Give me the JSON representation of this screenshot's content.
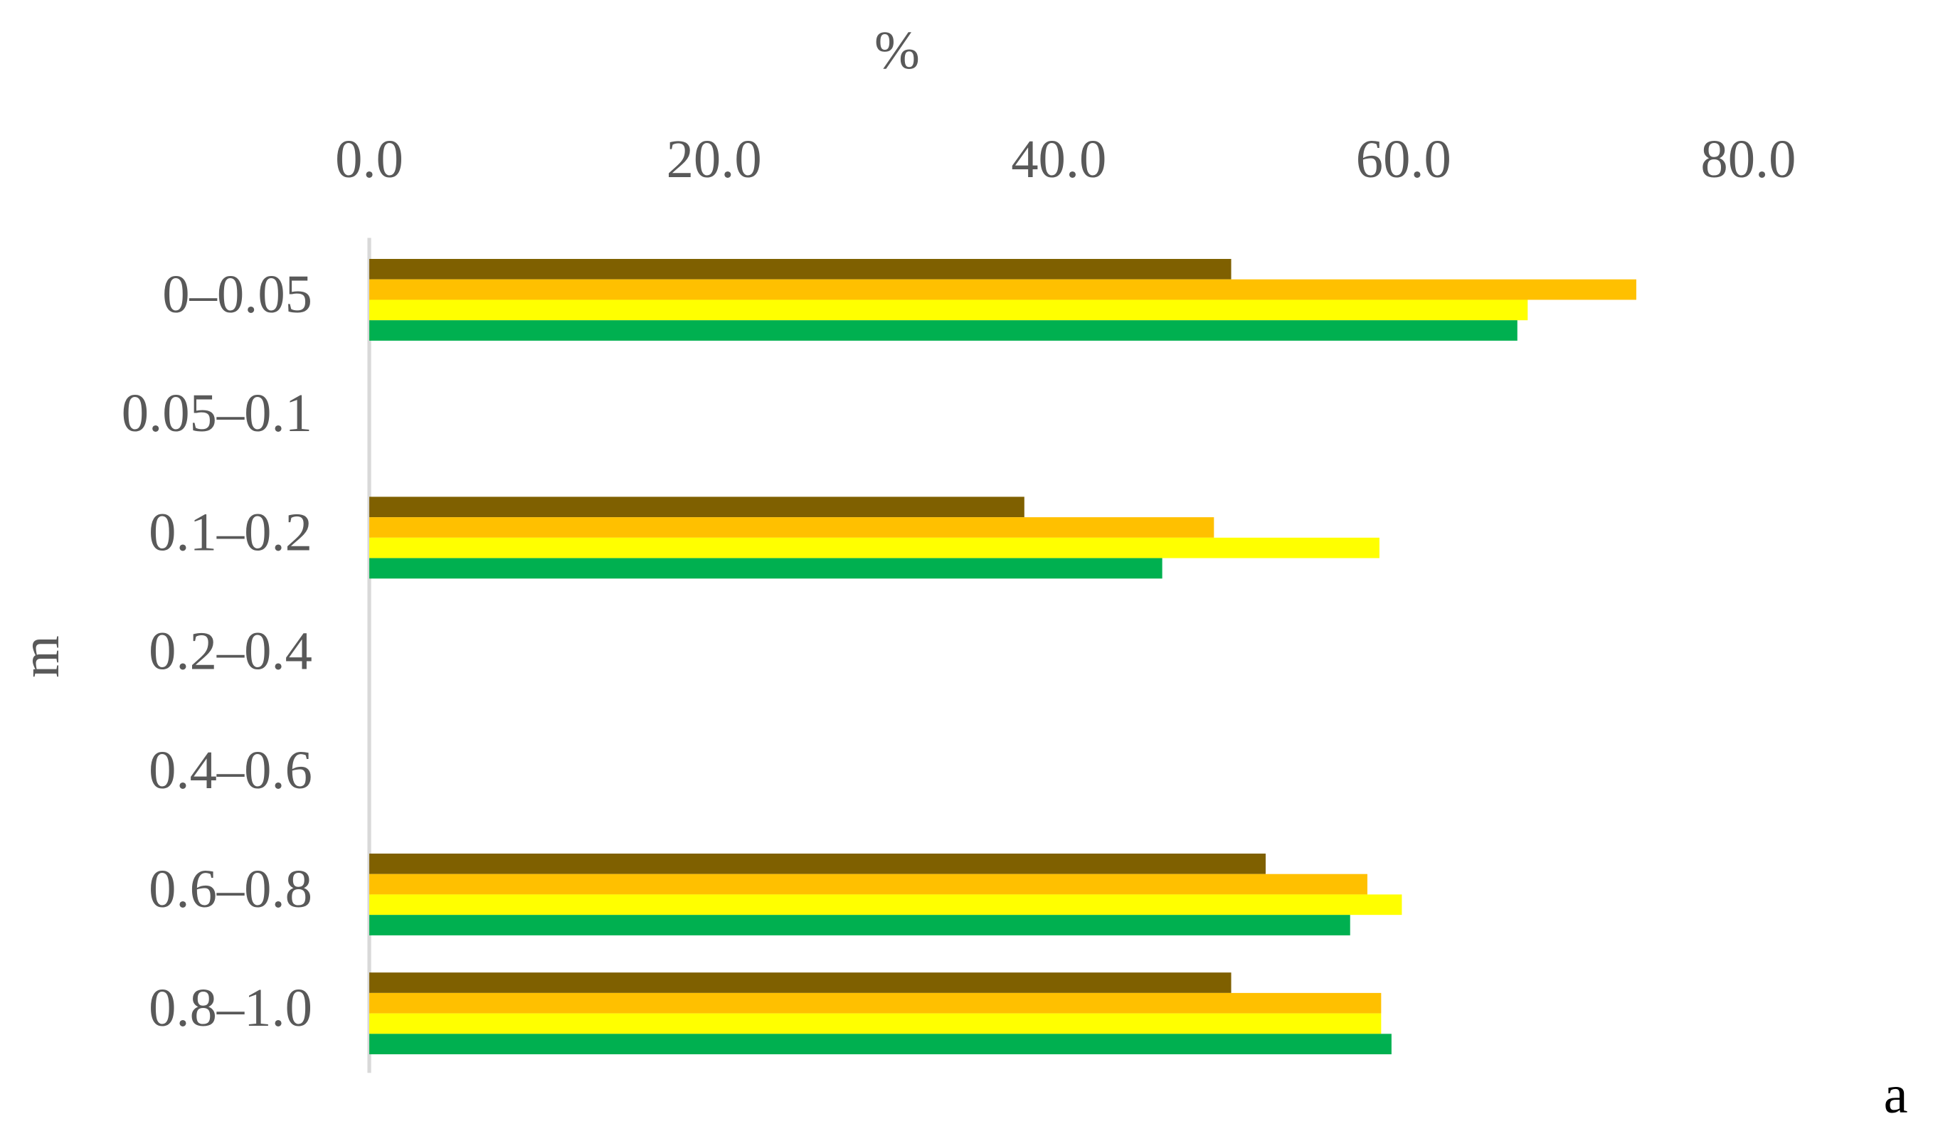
{
  "chart_data": {
    "type": "bar",
    "orientation": "horizontal",
    "x_label": "%",
    "y_label": "m",
    "annotation": "a",
    "categories": [
      "0–0.05",
      "0.05–0.1",
      "0.1–0.2",
      "0.2–0.4",
      "0.4–0.6",
      "0.6–0.8",
      "0.8–1.0"
    ],
    "series": [
      {
        "color": "#7f6000",
        "values": [
          50.0,
          null,
          38.0,
          null,
          null,
          52.0,
          50.0
        ]
      },
      {
        "color": "#ffc000",
        "values": [
          73.5,
          null,
          49.0,
          null,
          null,
          57.9,
          58.7
        ]
      },
      {
        "color": "#ffff00",
        "values": [
          67.2,
          null,
          58.6,
          null,
          null,
          59.9,
          58.7
        ]
      },
      {
        "color": "#00b050",
        "values": [
          66.6,
          null,
          46.0,
          null,
          null,
          56.9,
          59.3
        ]
      }
    ],
    "xlim": [
      0,
      80
    ],
    "xticks": [
      {
        "value": 0,
        "label": "0.0"
      },
      {
        "value": 20,
        "label": "20.0"
      },
      {
        "value": 40,
        "label": "40.0"
      },
      {
        "value": 60,
        "label": "60.0"
      },
      {
        "value": 80,
        "label": "80.0"
      }
    ],
    "x_axis_position": "top"
  }
}
